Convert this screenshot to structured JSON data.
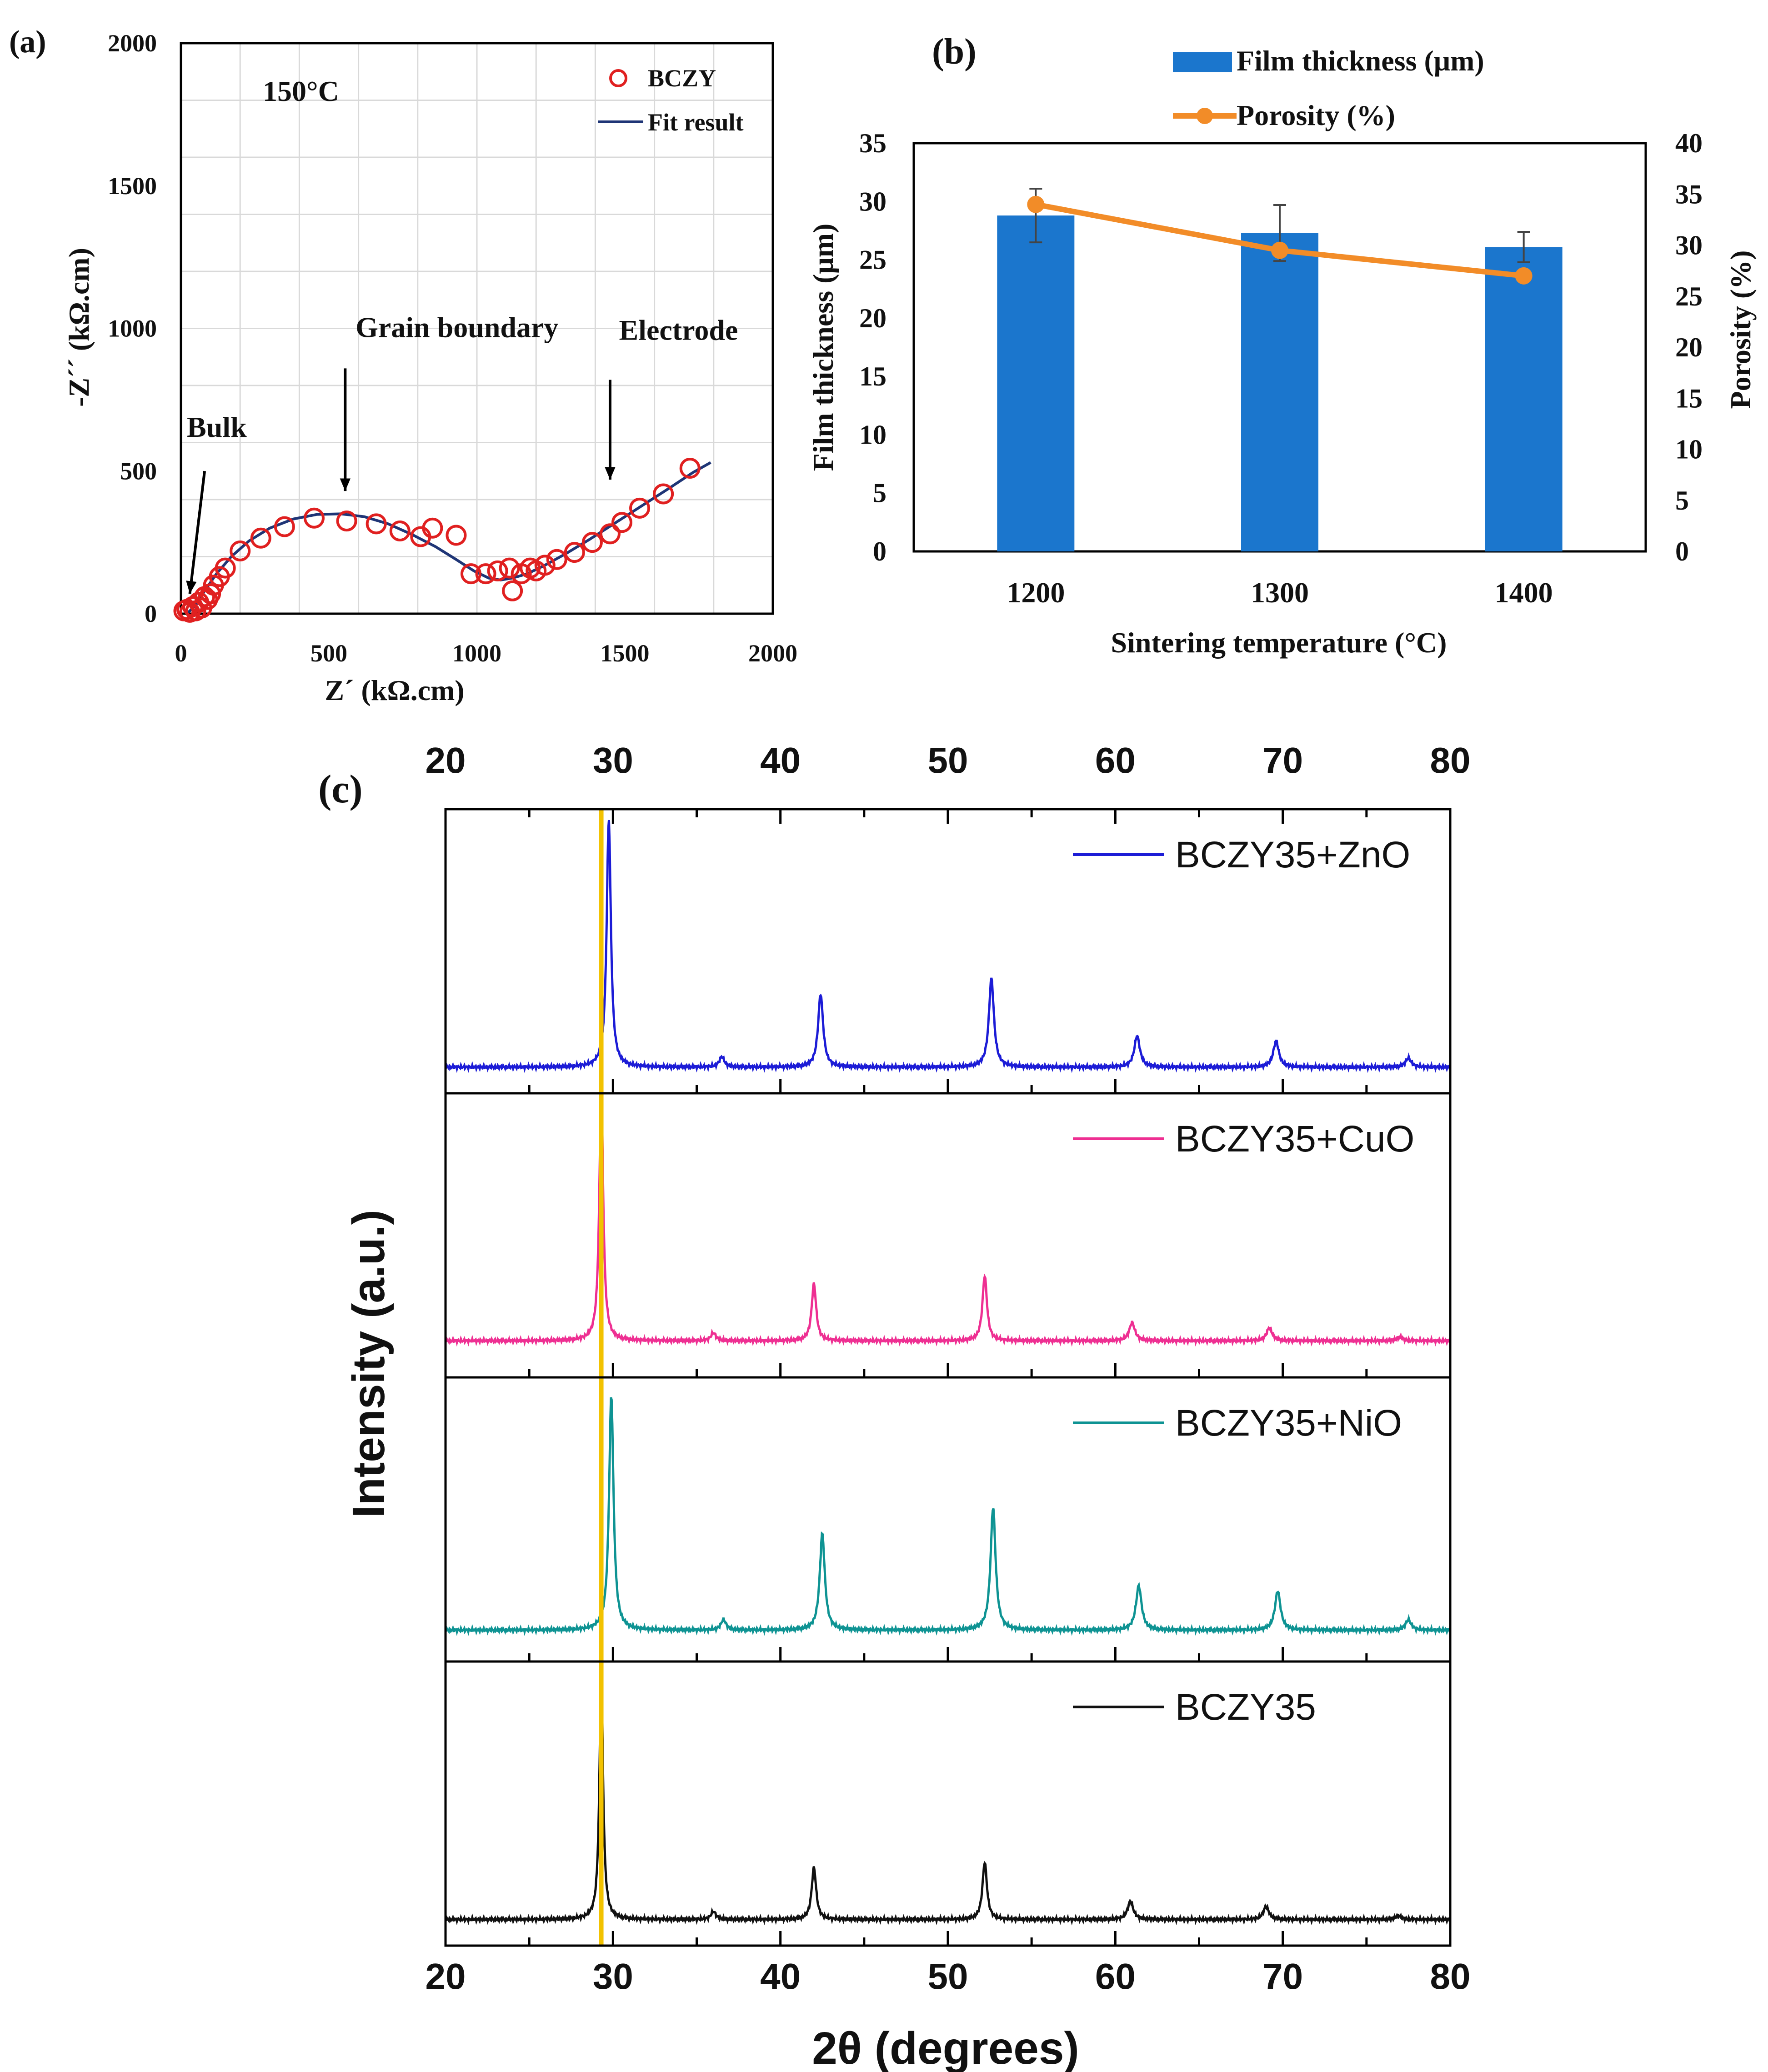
{
  "chart_data": [
    {
      "id": "a",
      "panel_label": "(a)",
      "type": "scatter",
      "annotation_temp": "150°C",
      "xlabel": "Z´ (kΩ.cm)",
      "ylabel": "-Z´´ (kΩ.cm)",
      "xlim": [
        0,
        2000
      ],
      "ylim": [
        0,
        2000
      ],
      "xticks": [
        "0",
        "500",
        "1000",
        "1500",
        "2000"
      ],
      "yticks": [
        "0",
        "500",
        "1000",
        "1500",
        "2000"
      ],
      "grid": true,
      "legend": {
        "position": "top-right",
        "scatter_label": "BCZY",
        "line_label": "Fit result"
      },
      "annotations": [
        {
          "text": "Bulk",
          "x": 20,
          "y": 620
        },
        {
          "text": "Grain boundary",
          "x": 590,
          "y": 970
        },
        {
          "text": "Electrode",
          "x": 1480,
          "y": 960
        }
      ],
      "arrows": [
        {
          "from": [
            80,
            500
          ],
          "to": [
            30,
            70
          ]
        },
        {
          "from": [
            555,
            860
          ],
          "to": [
            555,
            430
          ]
        },
        {
          "from": [
            1450,
            820
          ],
          "to": [
            1450,
            470
          ]
        }
      ],
      "scatter": {
        "x": [
          10,
          20,
          30,
          40,
          50,
          60,
          70,
          80,
          90,
          100,
          110,
          130,
          150,
          200,
          270,
          350,
          450,
          560,
          660,
          740,
          810,
          850,
          930,
          980,
          1030,
          1070,
          1110,
          1120,
          1150,
          1180,
          1200,
          1230,
          1270,
          1330,
          1390,
          1450,
          1490,
          1550,
          1630,
          1720
        ],
        "y": [
          10,
          15,
          5,
          25,
          10,
          40,
          20,
          60,
          50,
          70,
          100,
          130,
          160,
          220,
          265,
          305,
          335,
          325,
          315,
          290,
          270,
          300,
          275,
          140,
          140,
          150,
          160,
          80,
          140,
          160,
          150,
          170,
          190,
          215,
          250,
          280,
          320,
          370,
          420,
          510
        ]
      },
      "fit_line": {
        "x": [
          20,
          50,
          80,
          120,
          170,
          230,
          300,
          380,
          460,
          540,
          620,
          700,
          780,
          860,
          930,
          990,
          1040,
          1080,
          1120,
          1170,
          1230,
          1300,
          1380,
          1470,
          1560,
          1650,
          1730,
          1790
        ],
        "y": [
          0,
          30,
          80,
          140,
          200,
          255,
          300,
          332,
          348,
          350,
          340,
          315,
          278,
          235,
          190,
          150,
          125,
          118,
          125,
          140,
          170,
          210,
          260,
          320,
          380,
          440,
          495,
          530
        ]
      },
      "colors": {
        "scatter": "#e02020",
        "line": "#1f3576"
      }
    },
    {
      "id": "b",
      "panel_label": "(b)",
      "type": "bar",
      "categories": [
        "1200",
        "1300",
        "1400"
      ],
      "xlabel": "Sintering temperature (°C)",
      "ylabel_left": "Film thickness (μm)",
      "ylabel_right": "Porosity (%)",
      "ylim_left": [
        0,
        35
      ],
      "ylim_right": [
        0,
        40
      ],
      "yticks_left": [
        "0",
        "5",
        "10",
        "15",
        "20",
        "25",
        "30",
        "35"
      ],
      "yticks_right": [
        "0",
        "5",
        "10",
        "15",
        "20",
        "25",
        "30",
        "35",
        "40"
      ],
      "legend": {
        "position": "top-center",
        "bar_label": "Film thickness (μm)",
        "line_label": "Porosity (%)"
      },
      "series": [
        {
          "name": "Film thickness (μm)",
          "kind": "bar",
          "axis": "left",
          "values": [
            28.8,
            27.3,
            26.1
          ],
          "errors": [
            2.3,
            2.4,
            1.3
          ],
          "color": "#1b76cd"
        },
        {
          "name": "Porosity (%)",
          "kind": "line",
          "axis": "right",
          "values": [
            34.0,
            29.5,
            27.0
          ],
          "color": "#f28c28"
        }
      ]
    },
    {
      "id": "c",
      "panel_label": "(c)",
      "type": "line",
      "xlabel": "2θ (degrees)",
      "ylabel": "Intensity (a.u.)",
      "xlim": [
        20,
        80
      ],
      "xticks": [
        "20",
        "30",
        "40",
        "50",
        "60",
        "70",
        "80"
      ],
      "reference_line_x": 29.3,
      "reference_color": "#f2c200",
      "series": [
        {
          "name": "BCZY35+ZnO",
          "color": "#1c1cd6",
          "shift": 0.45,
          "baseline": 0.1,
          "peaks": [
            [
              29.75,
              0.95,
              0.15
            ],
            [
              36.5,
              0.04,
              0.18
            ],
            [
              42.4,
              0.28,
              0.18
            ],
            [
              52.6,
              0.34,
              0.18
            ],
            [
              61.3,
              0.12,
              0.2
            ],
            [
              69.6,
              0.1,
              0.2
            ],
            [
              77.5,
              0.035,
              0.2
            ]
          ]
        },
        {
          "name": "BCZY35+CuO",
          "color": "#ee2f92",
          "shift": 0.0,
          "baseline": 0.14,
          "peaks": [
            [
              29.3,
              0.96,
              0.14
            ],
            [
              36.0,
              0.03,
              0.18
            ],
            [
              42.0,
              0.22,
              0.16
            ],
            [
              52.2,
              0.25,
              0.16
            ],
            [
              61.0,
              0.07,
              0.2
            ],
            [
              69.2,
              0.05,
              0.2
            ],
            [
              77.0,
              0.015,
              0.2
            ]
          ]
        },
        {
          "name": "BCZY35+NiO",
          "color": "#0e9393",
          "shift": 0.6,
          "baseline": 0.12,
          "peaks": [
            [
              29.9,
              0.9,
              0.16
            ],
            [
              36.6,
              0.04,
              0.18
            ],
            [
              42.5,
              0.37,
              0.18
            ],
            [
              52.7,
              0.47,
              0.18
            ],
            [
              61.4,
              0.17,
              0.2
            ],
            [
              69.7,
              0.15,
              0.2
            ],
            [
              77.5,
              0.04,
              0.2
            ]
          ]
        },
        {
          "name": "BCZY35",
          "color": "#111111",
          "shift": 0.0,
          "baseline": 0.1,
          "peaks": [
            [
              29.3,
              0.94,
              0.13
            ],
            [
              36.0,
              0.03,
              0.18
            ],
            [
              42.0,
              0.2,
              0.16
            ],
            [
              52.2,
              0.22,
              0.16
            ],
            [
              60.9,
              0.07,
              0.2
            ],
            [
              69.0,
              0.05,
              0.2
            ],
            [
              76.9,
              0.015,
              0.2
            ]
          ]
        }
      ]
    }
  ]
}
